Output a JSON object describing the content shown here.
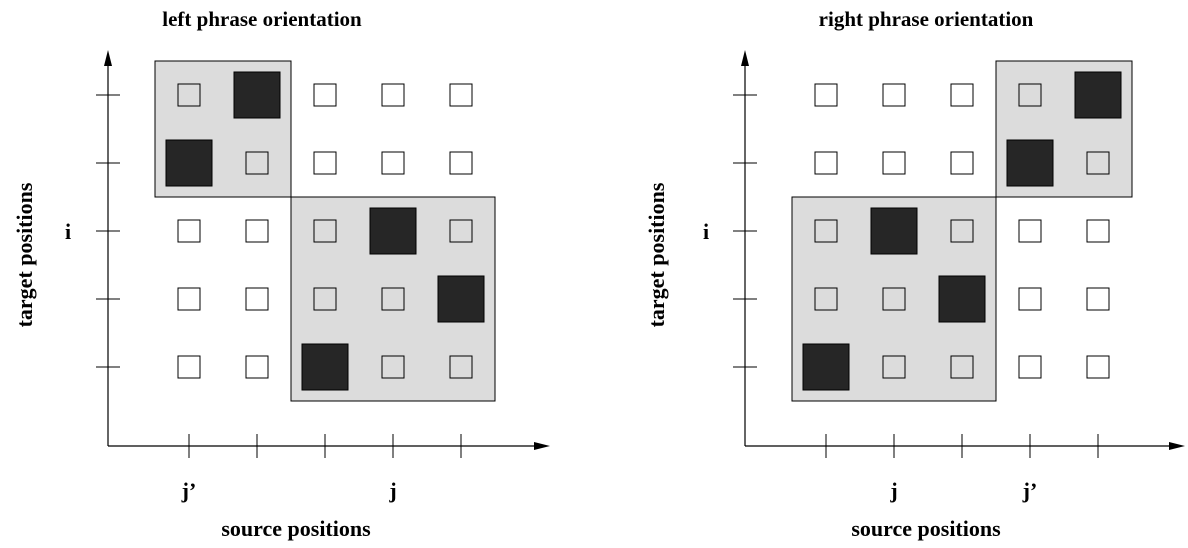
{
  "panels": [
    {
      "title": "left phrase orientation",
      "x_axis_label": "source positions",
      "y_axis_label": "target positions",
      "x_tick_labels": [
        {
          "col": 0,
          "text": "j’"
        },
        {
          "col": 3,
          "text": "j"
        }
      ],
      "y_tick_labels": [
        {
          "row": 2,
          "text": "i"
        }
      ],
      "phrase_blocks": [
        {
          "col_start": 0,
          "col_end": 1,
          "row_start": 0,
          "row_end": 1
        },
        {
          "col_start": 2,
          "col_end": 4,
          "row_start": 2,
          "row_end": 4
        }
      ],
      "alignments": [
        {
          "col": 1,
          "row": 0
        },
        {
          "col": 0,
          "row": 1
        },
        {
          "col": 3,
          "row": 2
        },
        {
          "col": 4,
          "row": 3
        },
        {
          "col": 2,
          "row": 4
        }
      ]
    },
    {
      "title": "right phrase orientation",
      "x_axis_label": "source positions",
      "y_axis_label": "target positions",
      "x_tick_labels": [
        {
          "col": 1,
          "text": "j"
        },
        {
          "col": 3,
          "text": "j’"
        }
      ],
      "y_tick_labels": [
        {
          "row": 2,
          "text": "i"
        }
      ],
      "phrase_blocks": [
        {
          "col_start": 3,
          "col_end": 4,
          "row_start": 0,
          "row_end": 1
        },
        {
          "col_start": 0,
          "col_end": 2,
          "row_start": 2,
          "row_end": 4
        }
      ],
      "alignments": [
        {
          "col": 4,
          "row": 0
        },
        {
          "col": 3,
          "row": 1
        },
        {
          "col": 1,
          "row": 2
        },
        {
          "col": 2,
          "row": 3
        },
        {
          "col": 0,
          "row": 4
        }
      ]
    }
  ],
  "colors": {
    "axis": "#000000",
    "phrase_block_fill": "#dcdcdc",
    "alignment_fill": "#262626",
    "cell_border": "#000000"
  }
}
